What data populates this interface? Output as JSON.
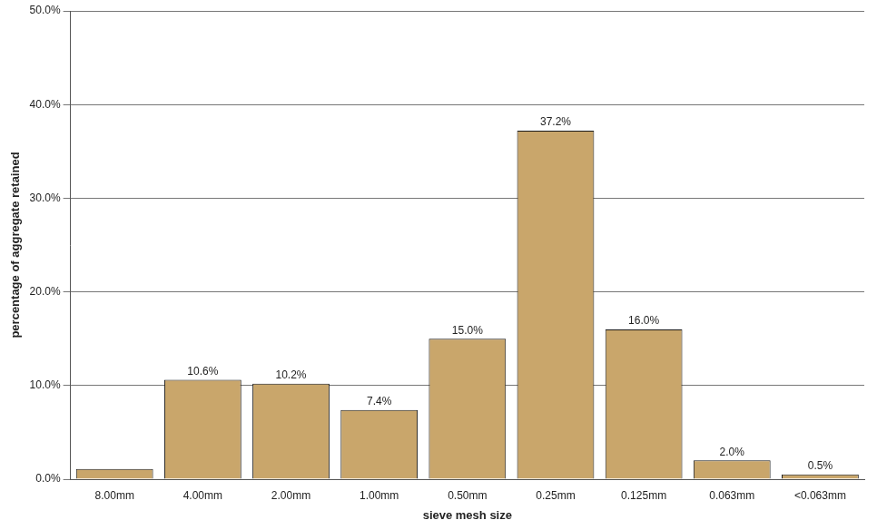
{
  "chart_data": {
    "type": "bar",
    "x_label": "sieve mesh size",
    "y_label": "percentage of aggregate retained",
    "categories": [
      "8.00mm",
      "4.00mm",
      "2.00mm",
      "1.00mm",
      "0.50mm",
      "0.25mm",
      "0.125mm",
      "0.063mm",
      "<0.063mm"
    ],
    "values": [
      1.1,
      10.6,
      10.2,
      7.4,
      15.0,
      37.2,
      16.0,
      2.0,
      0.5
    ],
    "value_labels": [
      null,
      "10.6%",
      "10.2%",
      "7.4%",
      "15.0%",
      "37.2%",
      "16.0%",
      "2.0%",
      "0.5%"
    ],
    "data_labels": true,
    "color": "#c9a66b",
    "ylim": [
      0,
      50
    ],
    "yticks": [
      {
        "value": 0,
        "label": "0.0%"
      },
      {
        "value": 10,
        "label": "10.0%"
      },
      {
        "value": 20,
        "label": "20.0%"
      },
      {
        "value": 30,
        "label": "30.0%"
      },
      {
        "value": 40,
        "label": "40.0%"
      },
      {
        "value": 50,
        "label": "50.0%"
      }
    ],
    "grid": true
  }
}
